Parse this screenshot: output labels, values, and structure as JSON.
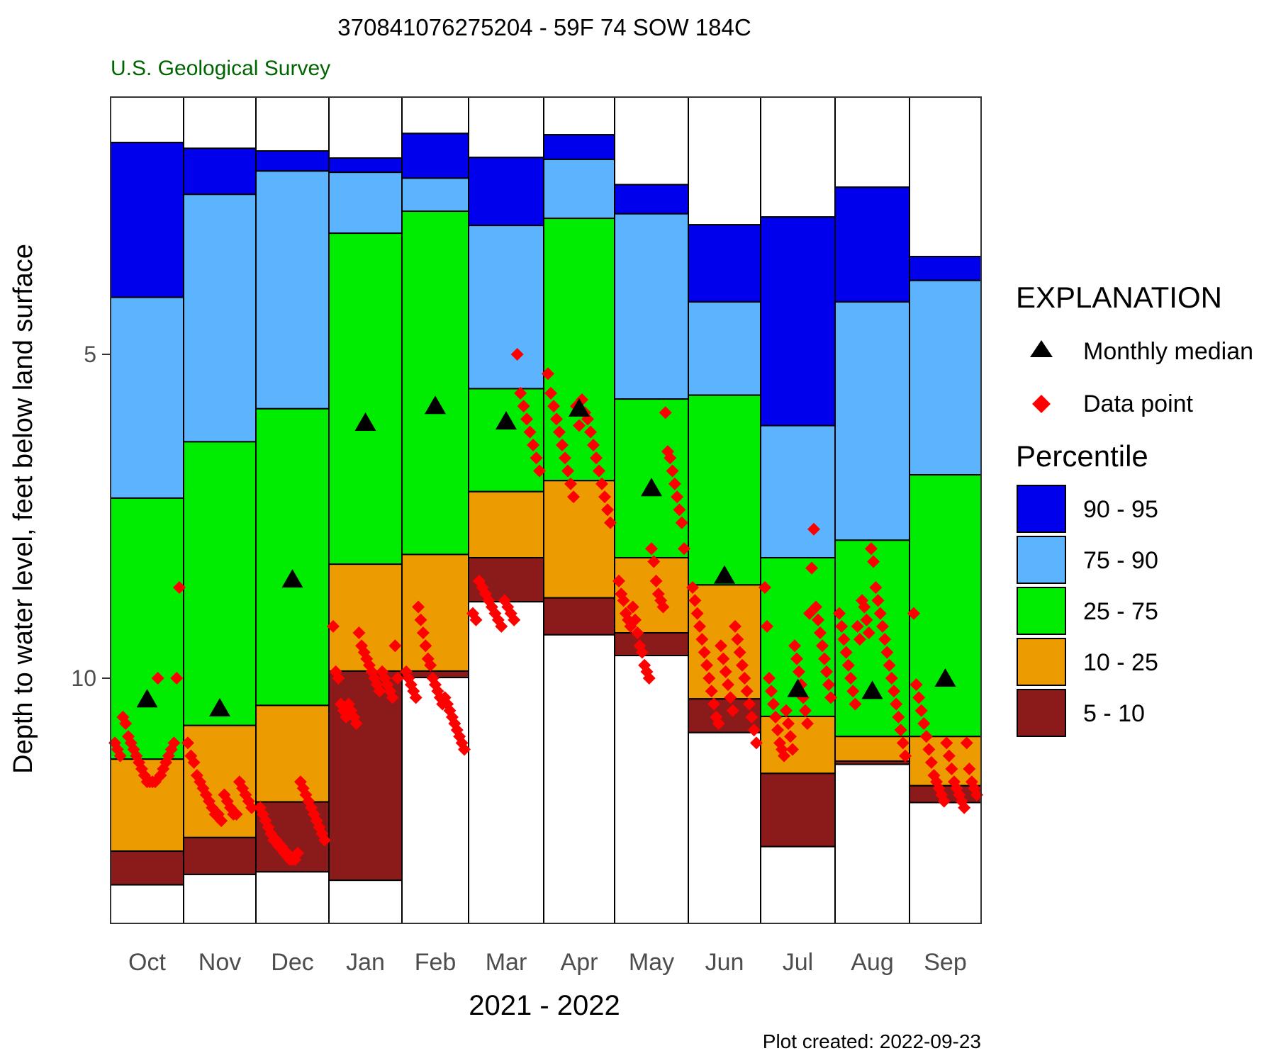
{
  "chart_data": {
    "type": "bar",
    "title": "370841076275204 - 59F 74 SOW 184C",
    "subtitle": "U.S. Geological Survey",
    "xlabel": "2021 - 2022",
    "ylabel": "Depth to water level, feet below land surface",
    "y_ticks": [
      5,
      10
    ],
    "y_tick_labels": [
      "5",
      "10"
    ],
    "ylim": [
      1.0,
      13.8
    ],
    "y_reversed": true,
    "footer": "Plot created: 2022-09-23",
    "months": [
      "Oct",
      "Nov",
      "Dec",
      "Jan",
      "Feb",
      "Mar",
      "Apr",
      "May",
      "Jun",
      "Jul",
      "Aug",
      "Sep"
    ],
    "percentile_series": [
      {
        "name": "90 - 95",
        "color": "#0000ec"
      },
      {
        "name": "75 - 90",
        "color": "#5cb4ff"
      },
      {
        "name": "25 - 75",
        "color": "#00ec00"
      },
      {
        "name": "10 - 25",
        "color": "#ec9c00"
      },
      {
        "name": "5 - 10",
        "color": "#8b1a1a"
      }
    ],
    "percentiles": [
      [
        1.73,
        4.12,
        7.22,
        11.25,
        12.67,
        13.19
      ],
      [
        1.82,
        2.53,
        6.35,
        10.73,
        12.46,
        13.03
      ],
      [
        1.86,
        2.17,
        5.84,
        10.42,
        11.91,
        12.99
      ],
      [
        1.97,
        2.19,
        3.13,
        8.24,
        9.89,
        13.12
      ],
      [
        1.59,
        2.28,
        2.79,
        8.09,
        9.89,
        9.99
      ],
      [
        1.96,
        3.01,
        5.53,
        7.12,
        8.14,
        8.82
      ],
      [
        1.61,
        1.99,
        2.9,
        6.95,
        8.76,
        9.33
      ],
      [
        2.38,
        2.83,
        5.69,
        8.14,
        9.3,
        9.65
      ],
      [
        3.0,
        4.19,
        5.63,
        8.56,
        10.32,
        10.84
      ],
      [
        2.88,
        6.1,
        8.14,
        10.59,
        11.47,
        12.6
      ],
      [
        2.42,
        4.19,
        7.87,
        10.9,
        11.28,
        11.33
      ],
      [
        3.49,
        3.86,
        6.86,
        10.9,
        11.66,
        11.92
      ]
    ],
    "monthly_median": [
      10.32,
      10.46,
      8.47,
      6.05,
      5.79,
      6.03,
      5.83,
      7.06,
      8.41,
      10.16,
      10.19,
      10.0
    ],
    "data_points": [
      [
        11.0,
        11.1,
        11.2,
        10.6,
        10.7,
        10.9,
        11.0,
        11.1,
        11.2,
        11.3,
        11.4,
        11.5,
        11.6,
        11.6,
        11.6,
        11.6,
        10.0,
        11.5,
        11.4,
        11.3,
        11.2,
        11.1,
        11.0,
        10.0,
        8.6
      ],
      [
        11.0,
        11.2,
        11.3,
        11.5,
        11.6,
        11.7,
        11.8,
        11.9,
        12.0,
        12.1,
        12.1,
        12.2,
        11.8,
        11.9,
        12.0,
        12.1,
        12.1,
        11.6,
        11.7,
        11.8,
        11.9,
        12.0
      ],
      [
        12.0,
        12.1,
        12.2,
        12.3,
        12.4,
        12.5,
        12.5,
        12.6,
        12.6,
        12.7,
        12.7,
        12.8,
        12.8,
        12.8,
        12.7,
        11.6,
        11.7,
        11.8,
        11.9,
        12.0,
        12.1,
        12.2,
        12.3,
        12.4,
        12.5
      ],
      [
        9.2,
        9.9,
        10.0,
        10.4,
        10.5,
        10.6,
        10.4,
        10.5,
        10.6,
        10.7,
        9.3,
        9.5,
        9.6,
        9.7,
        9.8,
        9.9,
        10.0,
        10.1,
        10.2,
        9.9,
        10.0,
        10.1,
        10.2,
        10.3,
        9.5,
        10.0
      ],
      [
        9.9,
        10.0,
        10.1,
        10.2,
        10.3,
        8.9,
        9.1,
        9.3,
        9.5,
        9.7,
        9.8,
        10.0,
        10.1,
        10.2,
        10.3,
        10.4,
        10.3,
        10.4,
        10.5,
        10.6,
        10.7,
        10.8,
        10.9,
        11.0,
        11.1
      ],
      [
        9.0,
        9.1,
        8.5,
        8.6,
        8.7,
        8.8,
        8.9,
        9.0,
        9.1,
        9.2,
        8.8,
        8.9,
        9.0,
        9.1,
        5.0,
        5.6,
        5.8,
        6.0,
        6.2,
        6.4,
        6.6,
        6.8
      ],
      [
        5.3,
        5.6,
        5.8,
        6.0,
        6.2,
        6.4,
        6.6,
        6.8,
        7.0,
        7.2,
        5.8,
        6.1,
        5.7,
        5.9,
        6.0,
        6.2,
        6.4,
        6.6,
        6.8,
        7.0,
        7.2,
        7.4,
        7.6
      ],
      [
        8.5,
        8.7,
        8.8,
        9.0,
        9.1,
        9.2,
        8.9,
        9.1,
        9.3,
        9.5,
        9.6,
        9.8,
        9.9,
        10.0,
        8.0,
        8.2,
        8.5,
        8.7,
        8.8,
        8.9,
        5.9,
        6.5,
        6.6,
        6.8,
        7.0,
        7.2,
        7.4,
        7.6,
        8.0
      ],
      [
        8.6,
        8.8,
        9.0,
        9.2,
        9.4,
        9.6,
        9.8,
        10.0,
        10.2,
        10.4,
        10.6,
        10.7,
        9.5,
        9.7,
        9.9,
        10.1,
        10.3,
        10.5,
        9.2,
        9.4,
        9.6,
        9.8,
        10.0,
        10.2,
        10.4,
        10.6,
        10.8,
        11.0
      ],
      [
        8.6,
        9.2,
        10.0,
        10.2,
        10.4,
        10.6,
        10.8,
        11.0,
        11.1,
        11.2,
        10.5,
        10.7,
        10.9,
        11.1,
        9.5,
        9.7,
        9.9,
        10.1,
        10.3,
        10.5,
        10.7,
        9.0,
        8.3,
        7.7,
        8.9,
        9.1,
        9.3,
        9.5,
        9.7,
        9.9,
        10.1,
        10.3
      ],
      [
        9.0,
        9.2,
        9.4,
        9.6,
        9.8,
        10.0,
        10.2,
        10.4,
        9.2,
        9.4,
        8.8,
        8.9,
        9.1,
        9.3,
        8.0,
        8.2,
        8.6,
        8.8,
        9.0,
        9.2,
        9.4,
        9.6,
        9.8,
        10.0,
        10.2,
        10.4,
        10.6,
        10.8,
        11.0,
        11.2
      ],
      [
        9.0,
        10.1,
        10.3,
        10.5,
        10.7,
        10.9,
        11.1,
        11.3,
        11.5,
        11.6,
        11.7,
        11.8,
        11.9,
        11.0,
        11.2,
        11.4,
        11.6,
        11.7,
        11.8,
        11.9,
        12.0,
        11.0,
        11.4,
        11.6,
        11.7,
        11.8
      ]
    ]
  },
  "legend": {
    "heading": "EXPLANATION",
    "median_label": "Monthly median",
    "data_label": "Data point",
    "percentile_heading": "Percentile",
    "median_color": "#000000",
    "data_color": "#ff0000"
  }
}
